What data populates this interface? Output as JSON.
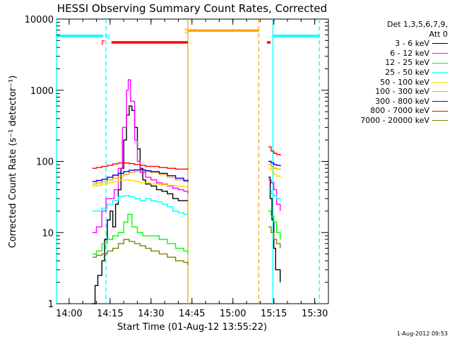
{
  "chart_data": {
    "type": "line",
    "title": "HESSI Observing Summary Count Rates, Corrected",
    "xlabel": "Start Time (01-Aug-12 13:55:22)",
    "ylabel": "Corrected Count Rate (s⁻¹ detector⁻¹)",
    "yscale": "log",
    "ylim": [
      1,
      10000
    ],
    "xlim": [
      "13:55:22",
      "15:35:00"
    ],
    "x_ticks": [
      "14:00",
      "14:15",
      "14:30",
      "14:45",
      "15:00",
      "15:15",
      "15:30"
    ],
    "y_ticks": [
      "1",
      "10",
      "100",
      "1000",
      "10000"
    ],
    "legend_header": [
      "Det 1,3,5,6,7,9,",
      "Att 0"
    ],
    "legend_position": "right",
    "series": [
      {
        "name": "3 - 6 keV",
        "color": "#000000",
        "segments": [
          [
            [
              "14:08:30",
              1
            ],
            [
              "14:09:30",
              1.8
            ],
            [
              "14:10:30",
              2.5
            ],
            [
              "14:12:00",
              4
            ],
            [
              "14:13:00",
              8
            ],
            [
              "14:14:00",
              15
            ],
            [
              "14:15:00",
              20
            ],
            [
              "14:16:00",
              12
            ],
            [
              "14:17:00",
              25
            ],
            [
              "14:18:00",
              40
            ],
            [
              "14:19:00",
              80
            ],
            [
              "14:20:00",
              200
            ],
            [
              "14:21:00",
              450
            ],
            [
              "14:22:00",
              600
            ],
            [
              "14:23:00",
              520
            ],
            [
              "14:24:00",
              300
            ],
            [
              "14:25:00",
              150
            ],
            [
              "14:26:00",
              80
            ],
            [
              "14:27:00",
              55
            ],
            [
              "14:28:00",
              48
            ],
            [
              "14:30:00",
              45
            ],
            [
              "14:32:00",
              40
            ],
            [
              "14:34:00",
              38
            ],
            [
              "14:36:00",
              35
            ],
            [
              "14:38:00",
              30
            ],
            [
              "14:40:00",
              28
            ],
            [
              "14:42:00",
              28
            ],
            [
              "14:43:30",
              28
            ]
          ],
          [
            [
              "15:13:00",
              60
            ],
            [
              "15:13:40",
              30
            ],
            [
              "15:14:20",
              15
            ],
            [
              "15:15:00",
              6
            ],
            [
              "15:15:40",
              3
            ],
            [
              "15:16:30",
              3
            ],
            [
              "15:17:20",
              2
            ]
          ]
        ]
      },
      {
        "name": "6 - 12 keV",
        "color": "#ff00ff",
        "segments": [
          [
            [
              "14:08:30",
              10
            ],
            [
              "14:10:00",
              12
            ],
            [
              "14:12:00",
              20
            ],
            [
              "14:13:30",
              30
            ],
            [
              "14:15:00",
              30
            ],
            [
              "14:16:30",
              40
            ],
            [
              "14:18:00",
              80
            ],
            [
              "14:19:30",
              300
            ],
            [
              "14:21:00",
              1000
            ],
            [
              "14:21:40",
              1400
            ],
            [
              "14:22:30",
              700
            ],
            [
              "14:24:00",
              200
            ],
            [
              "14:25:00",
              100
            ],
            [
              "14:26:00",
              70
            ],
            [
              "14:28:00",
              60
            ],
            [
              "14:30:00",
              55
            ],
            [
              "14:32:00",
              50
            ],
            [
              "14:34:00",
              48
            ],
            [
              "14:36:00",
              45
            ],
            [
              "14:38:00",
              42
            ],
            [
              "14:40:00",
              40
            ],
            [
              "14:42:00",
              38
            ],
            [
              "14:43:30",
              35
            ]
          ],
          [
            [
              "15:13:00",
              55
            ],
            [
              "15:14:00",
              50
            ],
            [
              "15:15:00",
              40
            ],
            [
              "15:16:00",
              25
            ],
            [
              "15:17:20",
              20
            ]
          ]
        ]
      },
      {
        "name": "12 - 25 keV",
        "color": "#00ff00",
        "segments": [
          [
            [
              "14:08:30",
              5
            ],
            [
              "14:10:00",
              5.5
            ],
            [
              "14:12:00",
              7
            ],
            [
              "14:14:00",
              8
            ],
            [
              "14:16:00",
              9
            ],
            [
              "14:18:00",
              10
            ],
            [
              "14:20:00",
              14
            ],
            [
              "14:21:30",
              18
            ],
            [
              "14:23:00",
              12
            ],
            [
              "14:25:00",
              10
            ],
            [
              "14:27:00",
              9
            ],
            [
              "14:30:00",
              9
            ],
            [
              "14:33:00",
              8
            ],
            [
              "14:36:00",
              7
            ],
            [
              "14:39:00",
              6
            ],
            [
              "14:42:00",
              5.5
            ],
            [
              "14:43:30",
              5
            ]
          ],
          [
            [
              "15:13:00",
              20
            ],
            [
              "15:14:00",
              17
            ],
            [
              "15:15:00",
              14
            ],
            [
              "15:16:00",
              10
            ],
            [
              "15:17:20",
              8
            ]
          ]
        ]
      },
      {
        "name": "25 - 50 keV",
        "color": "#00ffff",
        "segments": [
          [
            [
              "14:08:30",
              20
            ],
            [
              "14:10:00",
              20
            ],
            [
              "14:12:00",
              22
            ],
            [
              "14:14:00",
              25
            ],
            [
              "14:16:00",
              28
            ],
            [
              "14:18:00",
              32
            ],
            [
              "14:20:00",
              33
            ],
            [
              "14:22:00",
              32
            ],
            [
              "14:24:00",
              30
            ],
            [
              "14:26:00",
              28
            ],
            [
              "14:28:00",
              30
            ],
            [
              "14:30:00",
              28
            ],
            [
              "14:32:00",
              27
            ],
            [
              "14:34:00",
              25
            ],
            [
              "14:36:00",
              23
            ],
            [
              "14:38:00",
              20
            ],
            [
              "14:40:00",
              19
            ],
            [
              "14:42:00",
              18
            ],
            [
              "14:43:30",
              18
            ]
          ],
          [
            [
              "15:13:00",
              40
            ],
            [
              "15:14:00",
              35
            ],
            [
              "15:15:00",
              33
            ],
            [
              "15:16:00",
              30
            ],
            [
              "15:17:20",
              28
            ]
          ]
        ]
      },
      {
        "name": "50 - 100 keV",
        "color": "#ffd700",
        "segments": [
          [
            [
              "14:08:30",
              45
            ],
            [
              "14:10:00",
              46
            ],
            [
              "14:12:00",
              48
            ],
            [
              "14:14:00",
              50
            ],
            [
              "14:16:00",
              52
            ],
            [
              "14:18:00",
              55
            ],
            [
              "14:20:00",
              55
            ],
            [
              "14:22:00",
              54
            ],
            [
              "14:24:00",
              52
            ],
            [
              "14:26:00",
              50
            ],
            [
              "14:28:00",
              50
            ],
            [
              "14:30:00",
              48
            ],
            [
              "14:33:00",
              47
            ],
            [
              "14:36:00",
              46
            ],
            [
              "14:39:00",
              45
            ],
            [
              "14:42:00",
              44
            ],
            [
              "14:43:30",
              44
            ]
          ],
          [
            [
              "15:13:00",
              80
            ],
            [
              "15:14:00",
              75
            ],
            [
              "15:15:00",
              65
            ],
            [
              "15:16:00",
              62
            ],
            [
              "15:17:20",
              60
            ]
          ]
        ]
      },
      {
        "name": "100 - 300 keV",
        "color": "#ffa500",
        "segments": [
          [
            [
              "14:08:30",
              48
            ],
            [
              "14:10:00",
              50
            ],
            [
              "14:12:00",
              52
            ],
            [
              "14:14:00",
              55
            ],
            [
              "14:16:00",
              58
            ],
            [
              "14:18:00",
              62
            ],
            [
              "14:20:00",
              66
            ],
            [
              "14:22:00",
              70
            ],
            [
              "14:24:00",
              72
            ],
            [
              "14:26:00",
              73
            ],
            [
              "14:28:00",
              72
            ],
            [
              "14:30:00",
              70
            ],
            [
              "14:33:00",
              66
            ],
            [
              "14:36:00",
              60
            ],
            [
              "14:39:00",
              55
            ],
            [
              "14:42:00",
              52
            ],
            [
              "14:43:30",
              50
            ]
          ],
          [
            [
              "15:13:00",
              90
            ],
            [
              "15:14:00",
              85
            ],
            [
              "15:15:00",
              80
            ],
            [
              "15:16:00",
              78
            ],
            [
              "15:17:20",
              75
            ]
          ]
        ]
      },
      {
        "name": "300 - 800 keV",
        "color": "#0000ff",
        "segments": [
          [
            [
              "14:08:30",
              52
            ],
            [
              "14:10:00",
              54
            ],
            [
              "14:12:00",
              56
            ],
            [
              "14:14:00",
              60
            ],
            [
              "14:16:00",
              64
            ],
            [
              "14:18:00",
              68
            ],
            [
              "14:20:00",
              72
            ],
            [
              "14:22:00",
              75
            ],
            [
              "14:24:00",
              76
            ],
            [
              "14:26:00",
              76
            ],
            [
              "14:28:00",
              74
            ],
            [
              "14:30:00",
              72
            ],
            [
              "14:33:00",
              68
            ],
            [
              "14:36:00",
              63
            ],
            [
              "14:39:00",
              58
            ],
            [
              "14:42:00",
              54
            ],
            [
              "14:43:30",
              52
            ]
          ],
          [
            [
              "15:13:00",
              100
            ],
            [
              "15:14:00",
              95
            ],
            [
              "15:15:00",
              90
            ],
            [
              "15:16:00",
              88
            ],
            [
              "15:17:20",
              85
            ]
          ]
        ]
      },
      {
        "name": "800 - 7000 keV",
        "color": "#ff0000",
        "segments": [
          [
            [
              "14:08:30",
              80
            ],
            [
              "14:10:00",
              82
            ],
            [
              "14:12:00",
              85
            ],
            [
              "14:14:00",
              88
            ],
            [
              "14:16:00",
              92
            ],
            [
              "14:18:00",
              95
            ],
            [
              "14:20:00",
              95
            ],
            [
              "14:22:00",
              93
            ],
            [
              "14:24:00",
              90
            ],
            [
              "14:26:00",
              88
            ],
            [
              "14:28:00",
              85
            ],
            [
              "14:30:00",
              85
            ],
            [
              "14:33:00",
              82
            ],
            [
              "14:36:00",
              80
            ],
            [
              "14:39:00",
              78
            ],
            [
              "14:42:00",
              78
            ],
            [
              "14:43:30",
              80
            ]
          ],
          [
            [
              "15:13:00",
              160
            ],
            [
              "15:14:00",
              140
            ],
            [
              "15:15:00",
              130
            ],
            [
              "15:16:00",
              125
            ],
            [
              "15:17:20",
              120
            ]
          ]
        ]
      },
      {
        "name": "7000 - 20000 keV",
        "color": "#808000",
        "segments": [
          [
            [
              "14:08:30",
              4.5
            ],
            [
              "14:10:00",
              4.8
            ],
            [
              "14:12:00",
              5
            ],
            [
              "14:14:00",
              5.5
            ],
            [
              "14:16:00",
              6
            ],
            [
              "14:18:00",
              7
            ],
            [
              "14:20:00",
              8
            ],
            [
              "14:22:00",
              7.5
            ],
            [
              "14:24:00",
              7
            ],
            [
              "14:26:00",
              6.5
            ],
            [
              "14:28:00",
              6
            ],
            [
              "14:30:00",
              5.5
            ],
            [
              "14:33:00",
              5
            ],
            [
              "14:36:00",
              4.5
            ],
            [
              "14:39:00",
              4
            ],
            [
              "14:42:00",
              3.8
            ],
            [
              "14:43:30",
              3.5
            ]
          ],
          [
            [
              "15:13:00",
              12
            ],
            [
              "15:14:00",
              10
            ],
            [
              "15:15:00",
              8
            ],
            [
              "15:16:00",
              7
            ],
            [
              "15:17:20",
              6
            ]
          ]
        ]
      }
    ],
    "flags": [
      {
        "label": "",
        "color": "#00ffff",
        "level": 5800,
        "start": "13:55:22",
        "end": "14:12:30"
      },
      {
        "label": "",
        "color": "#00ffff",
        "level": 5800,
        "start": "15:14:40",
        "end": "15:31:40"
      },
      {
        "label": "",
        "color": "#ff0000",
        "level": 4700,
        "start": "14:15:30",
        "end": "14:43:30"
      },
      {
        "label": "",
        "color": "#ff0000",
        "level": 4700,
        "start": "15:12:30",
        "end": "15:13:50"
      },
      {
        "label": "",
        "color": "#ffa500",
        "level": 6900,
        "start": "14:43:30",
        "end": "15:09:30"
      }
    ],
    "markers": [
      {
        "label": "N",
        "color": "#00ffff",
        "x": "14:13:00"
      },
      {
        "label": "F",
        "color": "#ff0000",
        "x": "14:13:00"
      },
      {
        "label": "S",
        "color": "#ffa500",
        "x": "14:43:30"
      }
    ],
    "vertical_lines": [
      {
        "x": "13:55:22",
        "color": "#00ffff",
        "style": "solid"
      },
      {
        "x": "14:13:30",
        "color": "#00ffff",
        "style": "dashed"
      },
      {
        "x": "14:43:30",
        "color": "#ffa500",
        "style": "solid"
      },
      {
        "x": "15:09:30",
        "color": "#ffa500",
        "style": "dashed"
      },
      {
        "x": "15:14:40",
        "color": "#00ffff",
        "style": "solid"
      },
      {
        "x": "15:31:40",
        "color": "#00ffff",
        "style": "dashed"
      }
    ]
  },
  "timestamp": "1-Aug-2012 09:53"
}
